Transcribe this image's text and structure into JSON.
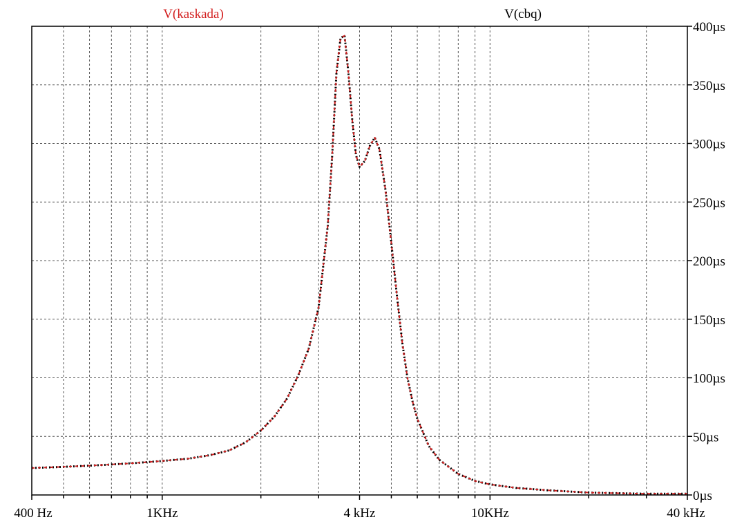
{
  "chart_data": {
    "type": "line",
    "x_scale": "log",
    "xlim": [
      400,
      40000
    ],
    "ylim": [
      0,
      400
    ],
    "grid": true,
    "legend_placement": "top",
    "legend": [
      {
        "name": "V(kaskada)",
        "color": "#d32020"
      },
      {
        "name": "V(cbq)",
        "color": "#000000"
      }
    ],
    "x_tick_labels": [
      {
        "value": 400,
        "label": "400 Hz"
      },
      {
        "value": 1000,
        "label": "1KHz"
      },
      {
        "value": 4000,
        "label": "4 kHz"
      },
      {
        "value": 10000,
        "label": "10KHz"
      },
      {
        "value": 40000,
        "label": "40 kHz"
      }
    ],
    "x_grid_values": [
      500,
      600,
      700,
      800,
      900,
      1000,
      2000,
      3000,
      4000,
      5000,
      6000,
      7000,
      8000,
      9000,
      10000,
      20000,
      30000
    ],
    "y_ticks": [
      {
        "value": 0,
        "label": "0µs"
      },
      {
        "value": 50,
        "label": "50µs"
      },
      {
        "value": 100,
        "label": "100µs"
      },
      {
        "value": 150,
        "label": "150µs"
      },
      {
        "value": 200,
        "label": "200µs"
      },
      {
        "value": 250,
        "label": "250µs"
      },
      {
        "value": 300,
        "label": "300µs"
      },
      {
        "value": 350,
        "label": "350µs"
      },
      {
        "value": 400,
        "label": "400µs"
      }
    ],
    "series": [
      {
        "name": "V(cbq)",
        "color": "#000000",
        "style": "dotted",
        "points": [
          [
            400,
            23
          ],
          [
            500,
            24
          ],
          [
            600,
            25
          ],
          [
            700,
            26
          ],
          [
            800,
            27
          ],
          [
            900,
            28
          ],
          [
            1000,
            29
          ],
          [
            1200,
            31
          ],
          [
            1400,
            34
          ],
          [
            1600,
            38
          ],
          [
            1800,
            45
          ],
          [
            2000,
            55
          ],
          [
            2200,
            67
          ],
          [
            2400,
            82
          ],
          [
            2600,
            102
          ],
          [
            2800,
            125
          ],
          [
            3000,
            160
          ],
          [
            3200,
            230
          ],
          [
            3300,
            290
          ],
          [
            3400,
            360
          ],
          [
            3500,
            390
          ],
          [
            3600,
            392
          ],
          [
            3700,
            360
          ],
          [
            3800,
            320
          ],
          [
            3900,
            290
          ],
          [
            4000,
            280
          ],
          [
            4150,
            285
          ],
          [
            4300,
            298
          ],
          [
            4450,
            305
          ],
          [
            4600,
            295
          ],
          [
            4800,
            260
          ],
          [
            5000,
            215
          ],
          [
            5200,
            170
          ],
          [
            5400,
            130
          ],
          [
            5600,
            100
          ],
          [
            5800,
            80
          ],
          [
            6000,
            65
          ],
          [
            6500,
            42
          ],
          [
            7000,
            30
          ],
          [
            8000,
            18
          ],
          [
            9000,
            12
          ],
          [
            10000,
            9
          ],
          [
            12000,
            6
          ],
          [
            15000,
            4
          ],
          [
            20000,
            2
          ],
          [
            30000,
            1
          ],
          [
            40000,
            1
          ]
        ]
      },
      {
        "name": "V(kaskada)",
        "color": "#d32020",
        "style": "dashed",
        "points": [
          [
            400,
            23
          ],
          [
            500,
            24
          ],
          [
            600,
            25
          ],
          [
            700,
            26
          ],
          [
            800,
            27
          ],
          [
            900,
            28
          ],
          [
            1000,
            29
          ],
          [
            1200,
            31
          ],
          [
            1400,
            34
          ],
          [
            1600,
            38
          ],
          [
            1800,
            45
          ],
          [
            2000,
            55
          ],
          [
            2200,
            67
          ],
          [
            2400,
            82
          ],
          [
            2600,
            102
          ],
          [
            2800,
            125
          ],
          [
            3000,
            160
          ],
          [
            3200,
            230
          ],
          [
            3300,
            290
          ],
          [
            3400,
            360
          ],
          [
            3500,
            390
          ],
          [
            3600,
            392
          ],
          [
            3700,
            360
          ],
          [
            3800,
            320
          ],
          [
            3900,
            290
          ],
          [
            4000,
            280
          ],
          [
            4150,
            285
          ],
          [
            4300,
            298
          ],
          [
            4450,
            305
          ],
          [
            4600,
            295
          ],
          [
            4800,
            260
          ],
          [
            5000,
            215
          ],
          [
            5200,
            170
          ],
          [
            5400,
            130
          ],
          [
            5600,
            100
          ],
          [
            5800,
            80
          ],
          [
            6000,
            65
          ],
          [
            6500,
            42
          ],
          [
            7000,
            30
          ],
          [
            8000,
            18
          ],
          [
            9000,
            12
          ],
          [
            10000,
            9
          ],
          [
            12000,
            6
          ],
          [
            15000,
            4
          ],
          [
            20000,
            2
          ],
          [
            30000,
            1
          ],
          [
            40000,
            1
          ]
        ]
      }
    ]
  }
}
